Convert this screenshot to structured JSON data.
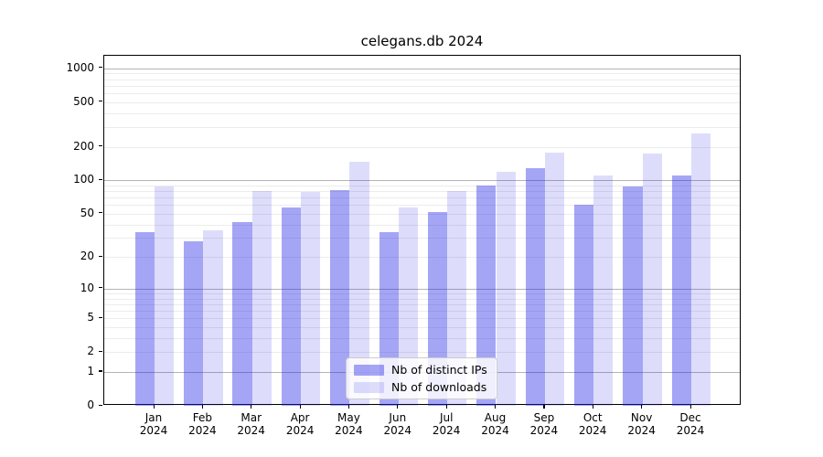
{
  "title": "celegans.db 2024",
  "chart_data": {
    "type": "bar",
    "title": "celegans.db 2024",
    "categories": [
      "Jan 2024",
      "Feb 2024",
      "Mar 2024",
      "Apr 2024",
      "May 2024",
      "Jun 2024",
      "Jul 2024",
      "Aug 2024",
      "Sep 2024",
      "Oct 2024",
      "Nov 2024",
      "Dec 2024"
    ],
    "series": [
      {
        "name": "Nb of distinct IPs",
        "color": "rgba(30,30,230,0.40)",
        "values": [
          34,
          28,
          42,
          57,
          82,
          34,
          52,
          89,
          128,
          60,
          88,
          110
        ]
      },
      {
        "name": "Nb of downloads",
        "color": "rgba(30,30,230,0.15)",
        "values": [
          88,
          35,
          80,
          78,
          148,
          57,
          80,
          120,
          178,
          110,
          174,
          262
        ]
      }
    ],
    "yscale": "log1p",
    "yticks": [
      0,
      1,
      2,
      5,
      10,
      20,
      50,
      100,
      200,
      500,
      1000
    ],
    "ylim": [
      0,
      1320
    ],
    "grid": "horizontal",
    "legend_position": "lower center",
    "colors": {
      "major_grid": "#b4b4b4",
      "minor_grid": "#ececec",
      "spine": "#000000"
    }
  }
}
